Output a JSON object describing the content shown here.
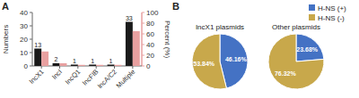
{
  "chart_data": [
    {
      "type": "bar",
      "annotations": [
        "A"
      ],
      "categories": [
        "IncX1",
        "IncI",
        "IncQ1",
        "IncFIB",
        "IncA/C2",
        "Multiple"
      ],
      "series": [
        {
          "color": "#1a1a1a",
          "values": [
            13,
            2,
            1,
            1,
            1,
            33
          ],
          "data_labels": true
        },
        {
          "color": "#e8a0a0",
          "values": [
            27,
            5,
            2,
            2,
            2,
            65
          ],
          "axis": "y2"
        }
      ],
      "y_label": "Numbers",
      "y2_label": "Percent (%)",
      "ylim": [
        0,
        40
      ],
      "yticks": [
        0,
        10,
        20,
        30,
        40
      ],
      "y2lim": [
        0,
        100
      ],
      "y2ticks": [
        0,
        20,
        40,
        60,
        80,
        100
      ],
      "grid": false
    },
    {
      "type": "pie",
      "annotations": [
        "B"
      ],
      "title": "IncX1 plasmids",
      "values": [
        46.16,
        53.84
      ],
      "value_labels": [
        "46.16%",
        "53.84%"
      ],
      "colors": [
        "#4472c4",
        "#c8a84b"
      ],
      "data_labels": true
    },
    {
      "type": "pie",
      "title": "Other plasmids",
      "categories": [
        "H-NS (+)",
        "H-NS (-)"
      ],
      "values": [
        23.68,
        76.32
      ],
      "value_labels": [
        "23.68%",
        "76.32%"
      ],
      "colors": [
        "#4472c4",
        "#c8a84b"
      ],
      "data_labels": true,
      "legend": "top-right"
    }
  ]
}
